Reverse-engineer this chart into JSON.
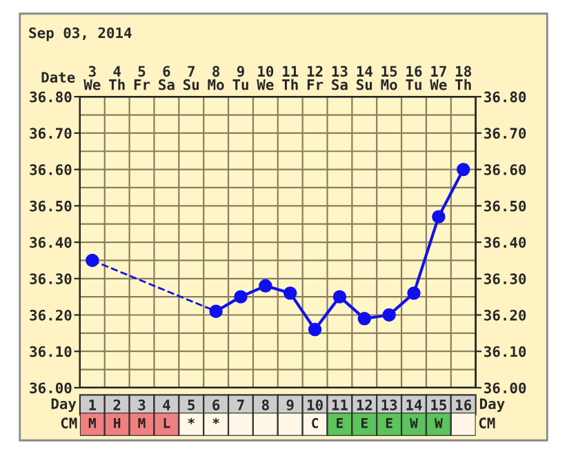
{
  "chart_data": [
    {
      "type": "line",
      "categories": [
        "1",
        "2",
        "3",
        "4",
        "5",
        "6",
        "7",
        "8",
        "9",
        "10",
        "11",
        "12",
        "13",
        "14",
        "15",
        "16"
      ],
      "series": [
        {
          "color": "#1010ee",
          "values": [
            36.35,
            null,
            null,
            null,
            null,
            36.21,
            36.25,
            36.28,
            36.26,
            36.16,
            36.25,
            36.19,
            36.2,
            36.26,
            36.47,
            36.6
          ]
        }
      ],
      "ylim": [
        36.0,
        36.8
      ],
      "yticks": [
        {
          "value": 36.0,
          "label": "36.00"
        },
        {
          "value": 36.1,
          "label": "36.10"
        },
        {
          "value": 36.2,
          "label": "36.20"
        },
        {
          "value": 36.3,
          "label": "36.30"
        },
        {
          "value": 36.4,
          "label": "36.40"
        },
        {
          "value": 36.5,
          "label": "36.50"
        },
        {
          "value": 36.6,
          "label": "36.60"
        },
        {
          "value": 36.7,
          "label": "36.70"
        },
        {
          "value": 36.8,
          "label": "36.80"
        }
      ],
      "y2lim": [
        36.0,
        36.8
      ],
      "y2ticks": [
        {
          "value": 36.0,
          "label": "36.00"
        },
        {
          "value": 36.1,
          "label": "36.10"
        },
        {
          "value": 36.2,
          "label": "36.20"
        },
        {
          "value": 36.3,
          "label": "36.30"
        },
        {
          "value": 36.4,
          "label": "36.40"
        },
        {
          "value": 36.5,
          "label": "36.50"
        },
        {
          "value": 36.6,
          "label": "36.60"
        },
        {
          "value": 36.7,
          "label": "36.70"
        },
        {
          "value": 36.8,
          "label": "36.80"
        }
      ],
      "x2lim": [
        2.5,
        18.5
      ],
      "x2label": "Date",
      "x2ticks": [
        {
          "value": 3,
          "label": "3\nWe"
        },
        {
          "value": 4,
          "label": "4\nTh"
        },
        {
          "value": 5,
          "label": "5\nFr"
        },
        {
          "value": 6,
          "label": "6\nSa"
        },
        {
          "value": 7,
          "label": "7\nSu"
        },
        {
          "value": 8,
          "label": "8\nMo"
        },
        {
          "value": 9,
          "label": "9\nTu"
        },
        {
          "value": 10,
          "label": "10\nWe"
        },
        {
          "value": 11,
          "label": "11\nTh"
        },
        {
          "value": 12,
          "label": "12\nFr"
        },
        {
          "value": 13,
          "label": "13\nSa"
        },
        {
          "value": 14,
          "label": "14\nSu"
        },
        {
          "value": 15,
          "label": "15\nMo"
        },
        {
          "value": 16,
          "label": "16\nTu"
        },
        {
          "value": 17,
          "label": "17\nWe"
        },
        {
          "value": 18,
          "label": "18\nTh"
        }
      ],
      "xlabel": "Day",
      "annotations": [
        "Sep 03, 2014"
      ],
      "marker": "circle",
      "grid": true
    },
    {
      "type": "other",
      "categories": [
        "M",
        "H",
        "M",
        "L",
        "*",
        "*",
        null,
        null,
        null,
        "C",
        "E",
        "E",
        "E",
        "W",
        "W",
        null
      ],
      "colors": [
        "#f08080",
        "#f08080",
        "#f08080",
        "#f08080",
        "#fff8e8",
        "#fff8e8",
        "#fff8e8",
        "#fff8e8",
        "#fff8e8",
        "#fff8e8",
        "#5cc45c",
        "#5cc45c",
        "#5cc45c",
        "#5cc45c",
        "#5cc45c",
        "#fff8e8"
      ],
      "annotations": [
        "CM"
      ]
    }
  ]
}
